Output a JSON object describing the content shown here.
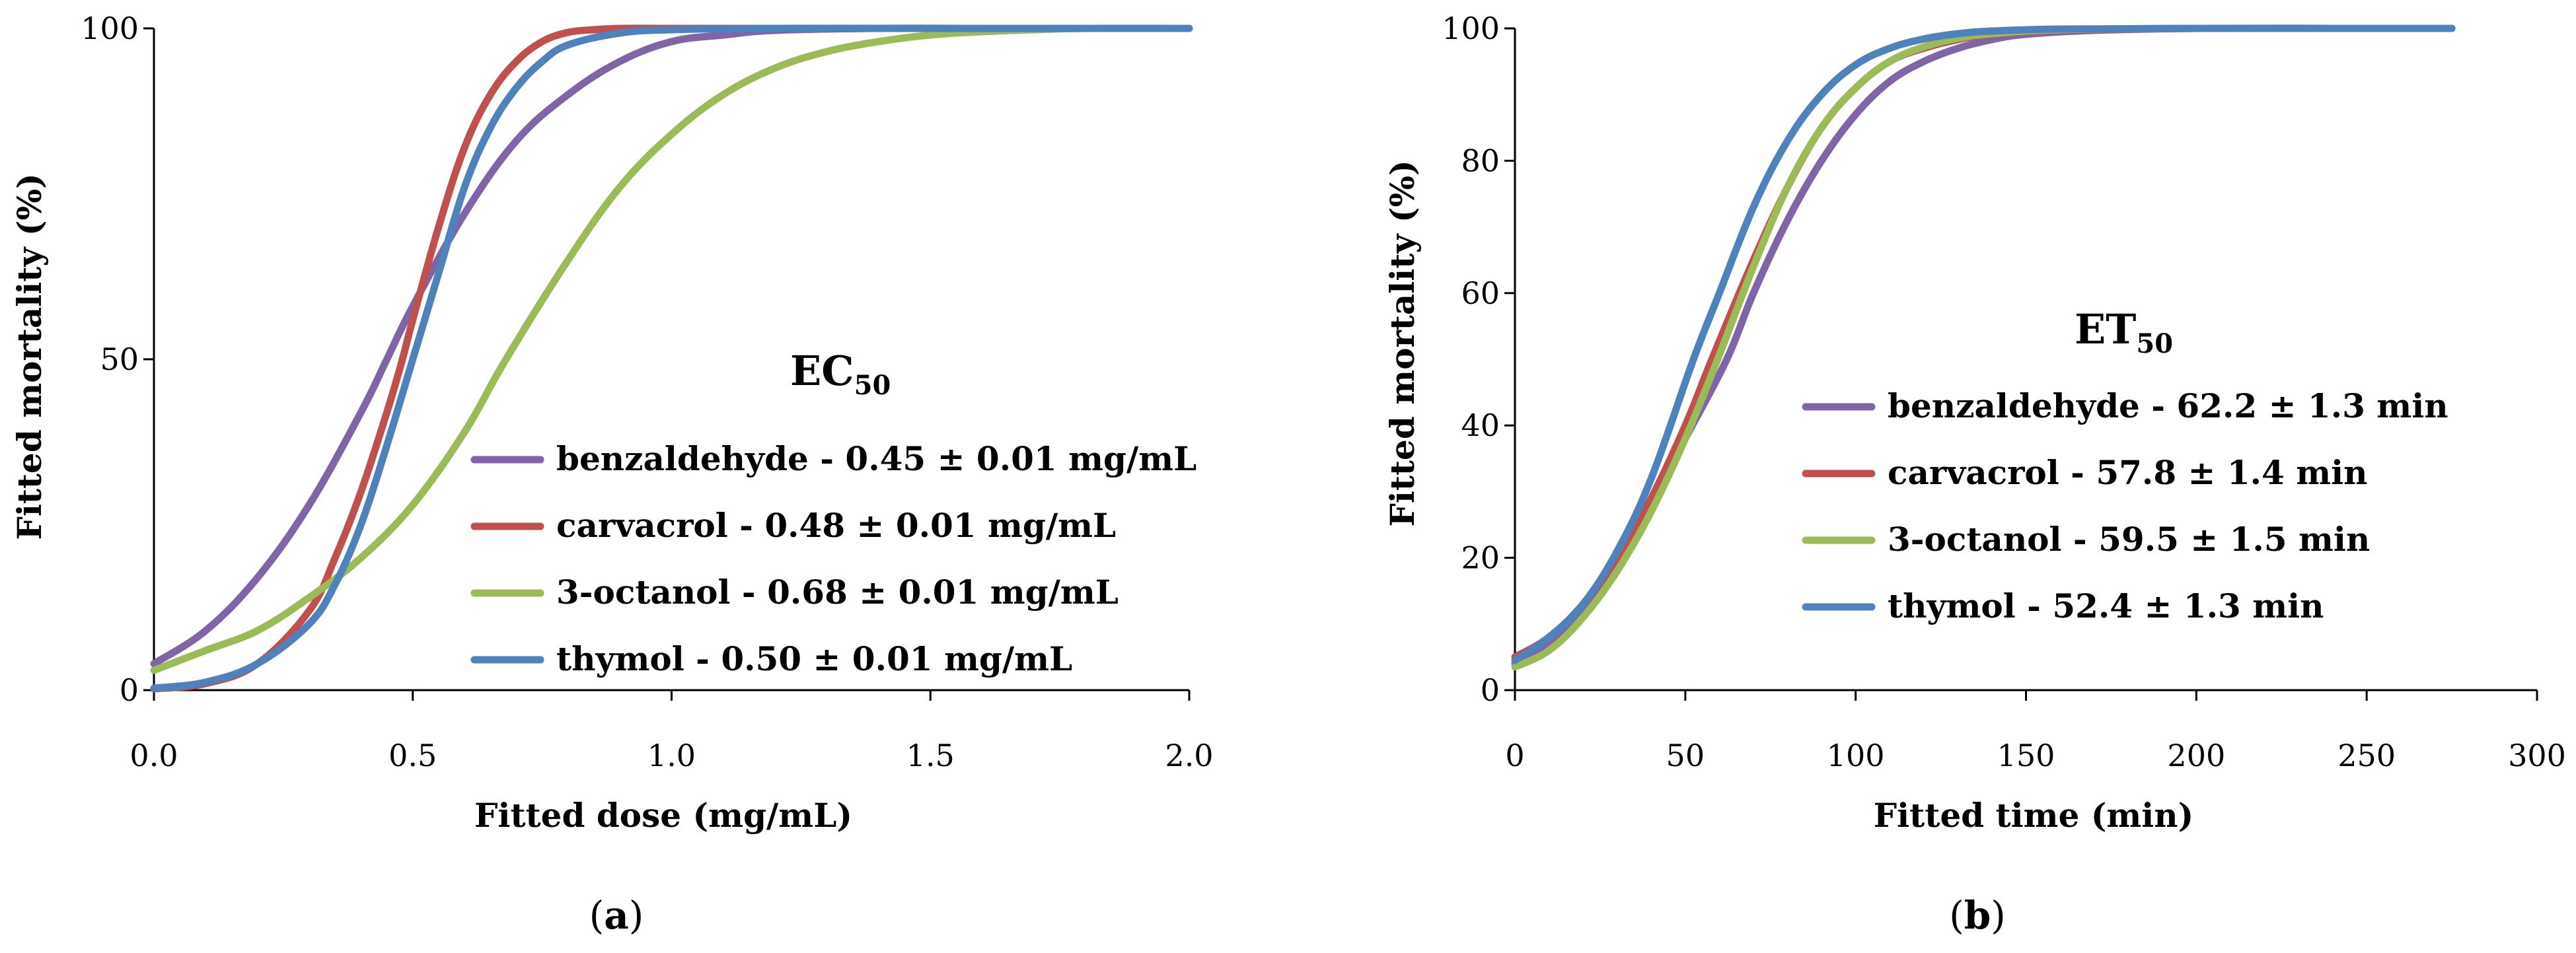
{
  "chart_data": [
    {
      "type": "line",
      "panel_label": "a",
      "title_main": "EC",
      "title_sub": "50",
      "xlabel": "Fitted dose (mg/mL)",
      "ylabel": "Fitted mortality (%)",
      "xlim": [
        0,
        2.0
      ],
      "ylim": [
        0,
        100
      ],
      "xticks": [
        "0.0",
        "0.5",
        "1.0",
        "1.5",
        "2.0"
      ],
      "yticks": [
        "0",
        "50",
        "100"
      ],
      "legend_position": "right-center",
      "series": [
        {
          "name": "benzaldehyde",
          "legend": "benzaldehyde - 0.45 ± 0.01 mg/mL",
          "color": "#7f64a8",
          "x": [
            0,
            0.1,
            0.2,
            0.3,
            0.4,
            0.45,
            0.5,
            0.6,
            0.7,
            0.8,
            0.9,
            1.0,
            1.1,
            1.2,
            1.4,
            1.6,
            1.8,
            2.0
          ],
          "y": [
            4,
            9,
            17,
            28,
            42,
            50,
            58,
            72,
            83,
            90,
            95,
            98,
            99,
            99.7,
            100,
            100,
            100,
            100
          ]
        },
        {
          "name": "carvacrol",
          "legend": "carvacrol - 0.48 ± 0.01 mg/mL",
          "color": "#c0504d",
          "x": [
            0,
            0.1,
            0.2,
            0.3,
            0.35,
            0.4,
            0.45,
            0.48,
            0.5,
            0.55,
            0.6,
            0.65,
            0.7,
            0.75,
            0.8,
            0.85,
            0.9,
            1.0,
            1.2,
            1.5,
            2.0
          ],
          "y": [
            0.2,
            1,
            4,
            12,
            20,
            30,
            42,
            50,
            56,
            70,
            82,
            90,
            95,
            98,
            99.4,
            99.8,
            100,
            100,
            100,
            100,
            100
          ]
        },
        {
          "name": "3-octanol",
          "legend": "3-octanol - 0.68 ± 0.01 mg/mL",
          "color": "#9bbb59",
          "x": [
            0,
            0.1,
            0.2,
            0.3,
            0.4,
            0.5,
            0.6,
            0.68,
            0.8,
            0.9,
            1.0,
            1.1,
            1.2,
            1.3,
            1.4,
            1.5,
            1.6,
            1.7,
            1.8,
            2.0
          ],
          "y": [
            3,
            6,
            9,
            14,
            20,
            28,
            39,
            50,
            65,
            76,
            84,
            90,
            94,
            96.5,
            98,
            99,
            99.5,
            99.8,
            100,
            100
          ]
        },
        {
          "name": "thymol",
          "legend": "thymol - 0.50 ± 0.01 mg/mL",
          "color": "#4f81bd",
          "x": [
            0,
            0.1,
            0.2,
            0.3,
            0.35,
            0.4,
            0.45,
            0.5,
            0.55,
            0.6,
            0.65,
            0.7,
            0.75,
            0.8,
            0.9,
            1.0,
            1.2,
            1.5,
            2.0
          ],
          "y": [
            0.3,
            1.2,
            4,
            10,
            16,
            25,
            37,
            50,
            63,
            76,
            85,
            91,
            95,
            97.5,
            99.3,
            99.8,
            100,
            100,
            100
          ]
        }
      ]
    },
    {
      "type": "line",
      "panel_label": "b",
      "title_main": "ET",
      "title_sub": "50",
      "xlabel": "Fitted time (min)",
      "ylabel": "Fitted mortality (%)",
      "xlim": [
        0,
        300
      ],
      "ylim": [
        0,
        100
      ],
      "xticks": [
        "0",
        "50",
        "100",
        "150",
        "200",
        "250",
        "300"
      ],
      "yticks": [
        "0",
        "20",
        "40",
        "60",
        "80",
        "100"
      ],
      "legend_position": "right-center",
      "series": [
        {
          "name": "benzaldehyde",
          "legend": "benzaldehyde - 62.2 ± 1.3 min",
          "color": "#7f64a8",
          "x": [
            0,
            10,
            20,
            30,
            40,
            50,
            62.2,
            70,
            80,
            90,
            100,
            110,
            120,
            130,
            140,
            150,
            170,
            200,
            240,
            275
          ],
          "y": [
            4,
            7,
            12,
            19,
            28,
            38,
            50,
            60,
            71,
            80,
            87,
            92,
            95,
            97,
            98.3,
            99.1,
            99.7,
            100,
            100,
            100
          ]
        },
        {
          "name": "carvacrol",
          "legend": "carvacrol - 57.8 ± 1.4 min",
          "color": "#c0504d",
          "x": [
            0,
            10,
            20,
            30,
            40,
            50,
            57.8,
            70,
            80,
            90,
            100,
            110,
            120,
            130,
            140,
            160,
            200,
            240,
            275
          ],
          "y": [
            5,
            8,
            13,
            20,
            29,
            40,
            50,
            65,
            76,
            85,
            91,
            95,
            97,
            98.3,
            99.1,
            99.7,
            100,
            100,
            100
          ]
        },
        {
          "name": "3-octanol",
          "legend": "3-octanol - 59.5 ± 1.5 min",
          "color": "#9bbb59",
          "x": [
            0,
            10,
            20,
            30,
            40,
            50,
            59.5,
            70,
            80,
            90,
            100,
            110,
            120,
            130,
            140,
            160,
            200,
            240,
            275
          ],
          "y": [
            3.5,
            6,
            11,
            18,
            27,
            38,
            50,
            64,
            76,
            85,
            91,
            95,
            97.2,
            98.5,
            99.2,
            99.8,
            100,
            100,
            100
          ]
        },
        {
          "name": "thymol",
          "legend": "thymol - 52.4 ± 1.3 min",
          "color": "#4f81bd",
          "x": [
            0,
            10,
            20,
            30,
            40,
            52.4,
            60,
            70,
            80,
            90,
            100,
            110,
            120,
            130,
            140,
            160,
            200,
            240,
            275
          ],
          "y": [
            4.5,
            8,
            13,
            21,
            32,
            50,
            60,
            73,
            83,
            90,
            94.5,
            97,
            98.4,
            99.2,
            99.6,
            99.9,
            100,
            100,
            100
          ]
        }
      ]
    }
  ]
}
